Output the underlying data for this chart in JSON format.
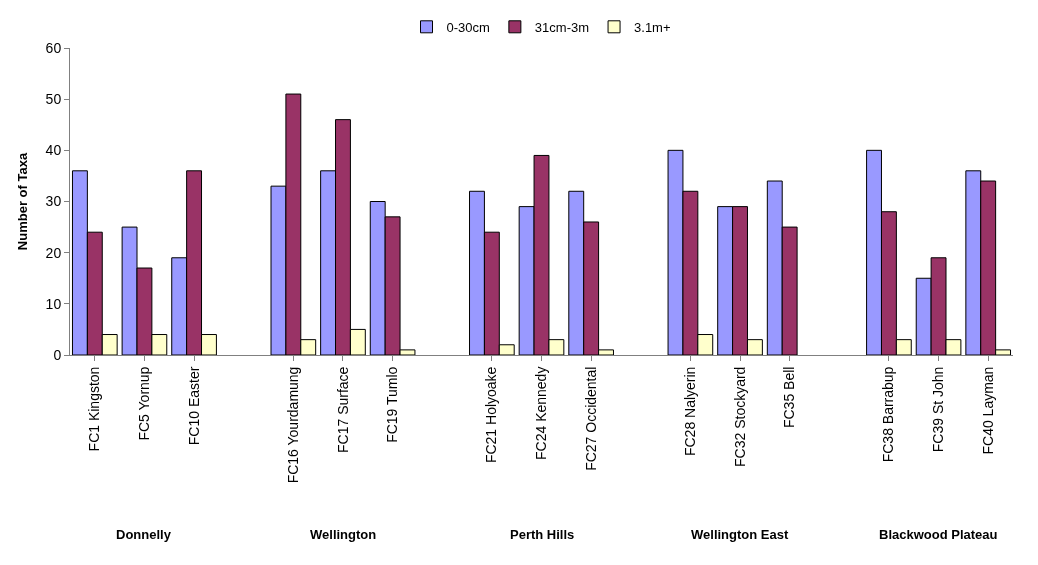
{
  "chart_data": {
    "type": "bar",
    "ylabel": "Number of Taxa",
    "categories": [
      "FC1 Kingston",
      "FC5 Yornup",
      "FC10 Easter",
      null,
      "FC16 Yourdamung",
      "FC17 Surface",
      "FC19 Tumlo",
      null,
      "FC21 Holyoake",
      "FC24 Kennedy",
      "FC27 Occidental",
      null,
      "FC28 Nalyerin",
      "FC32 Stockyard",
      "FC35 Bell",
      null,
      "FC38 Barrabup",
      "FC39 St John",
      "FC40 Layman"
    ],
    "series": [
      {
        "name": "0-30cm",
        "color": "#9999ff",
        "values": [
          36,
          25,
          19,
          null,
          33,
          36,
          30,
          null,
          32,
          29,
          32,
          null,
          40,
          29,
          34,
          null,
          40,
          15,
          36
        ]
      },
      {
        "name": "31cm-3m",
        "color": "#993366",
        "values": [
          24,
          17,
          36,
          null,
          51,
          46,
          27,
          null,
          24,
          39,
          26,
          null,
          32,
          29,
          25,
          null,
          28,
          19,
          34
        ]
      },
      {
        "name": "3.1m+",
        "color": "#ffffcc",
        "values": [
          4,
          4,
          4,
          null,
          3,
          5,
          1,
          null,
          2,
          3,
          1,
          null,
          4,
          3,
          null,
          null,
          3,
          3,
          1
        ]
      }
    ],
    "annotations": [
      "Donnelly",
      "Wellington",
      "Perth Hills",
      "Wellington East",
      "Blackwood Plateau"
    ],
    "ylim": [
      0,
      60
    ],
    "yticks": [
      0,
      10,
      20,
      30,
      40,
      50,
      60
    ],
    "legend": "top"
  }
}
